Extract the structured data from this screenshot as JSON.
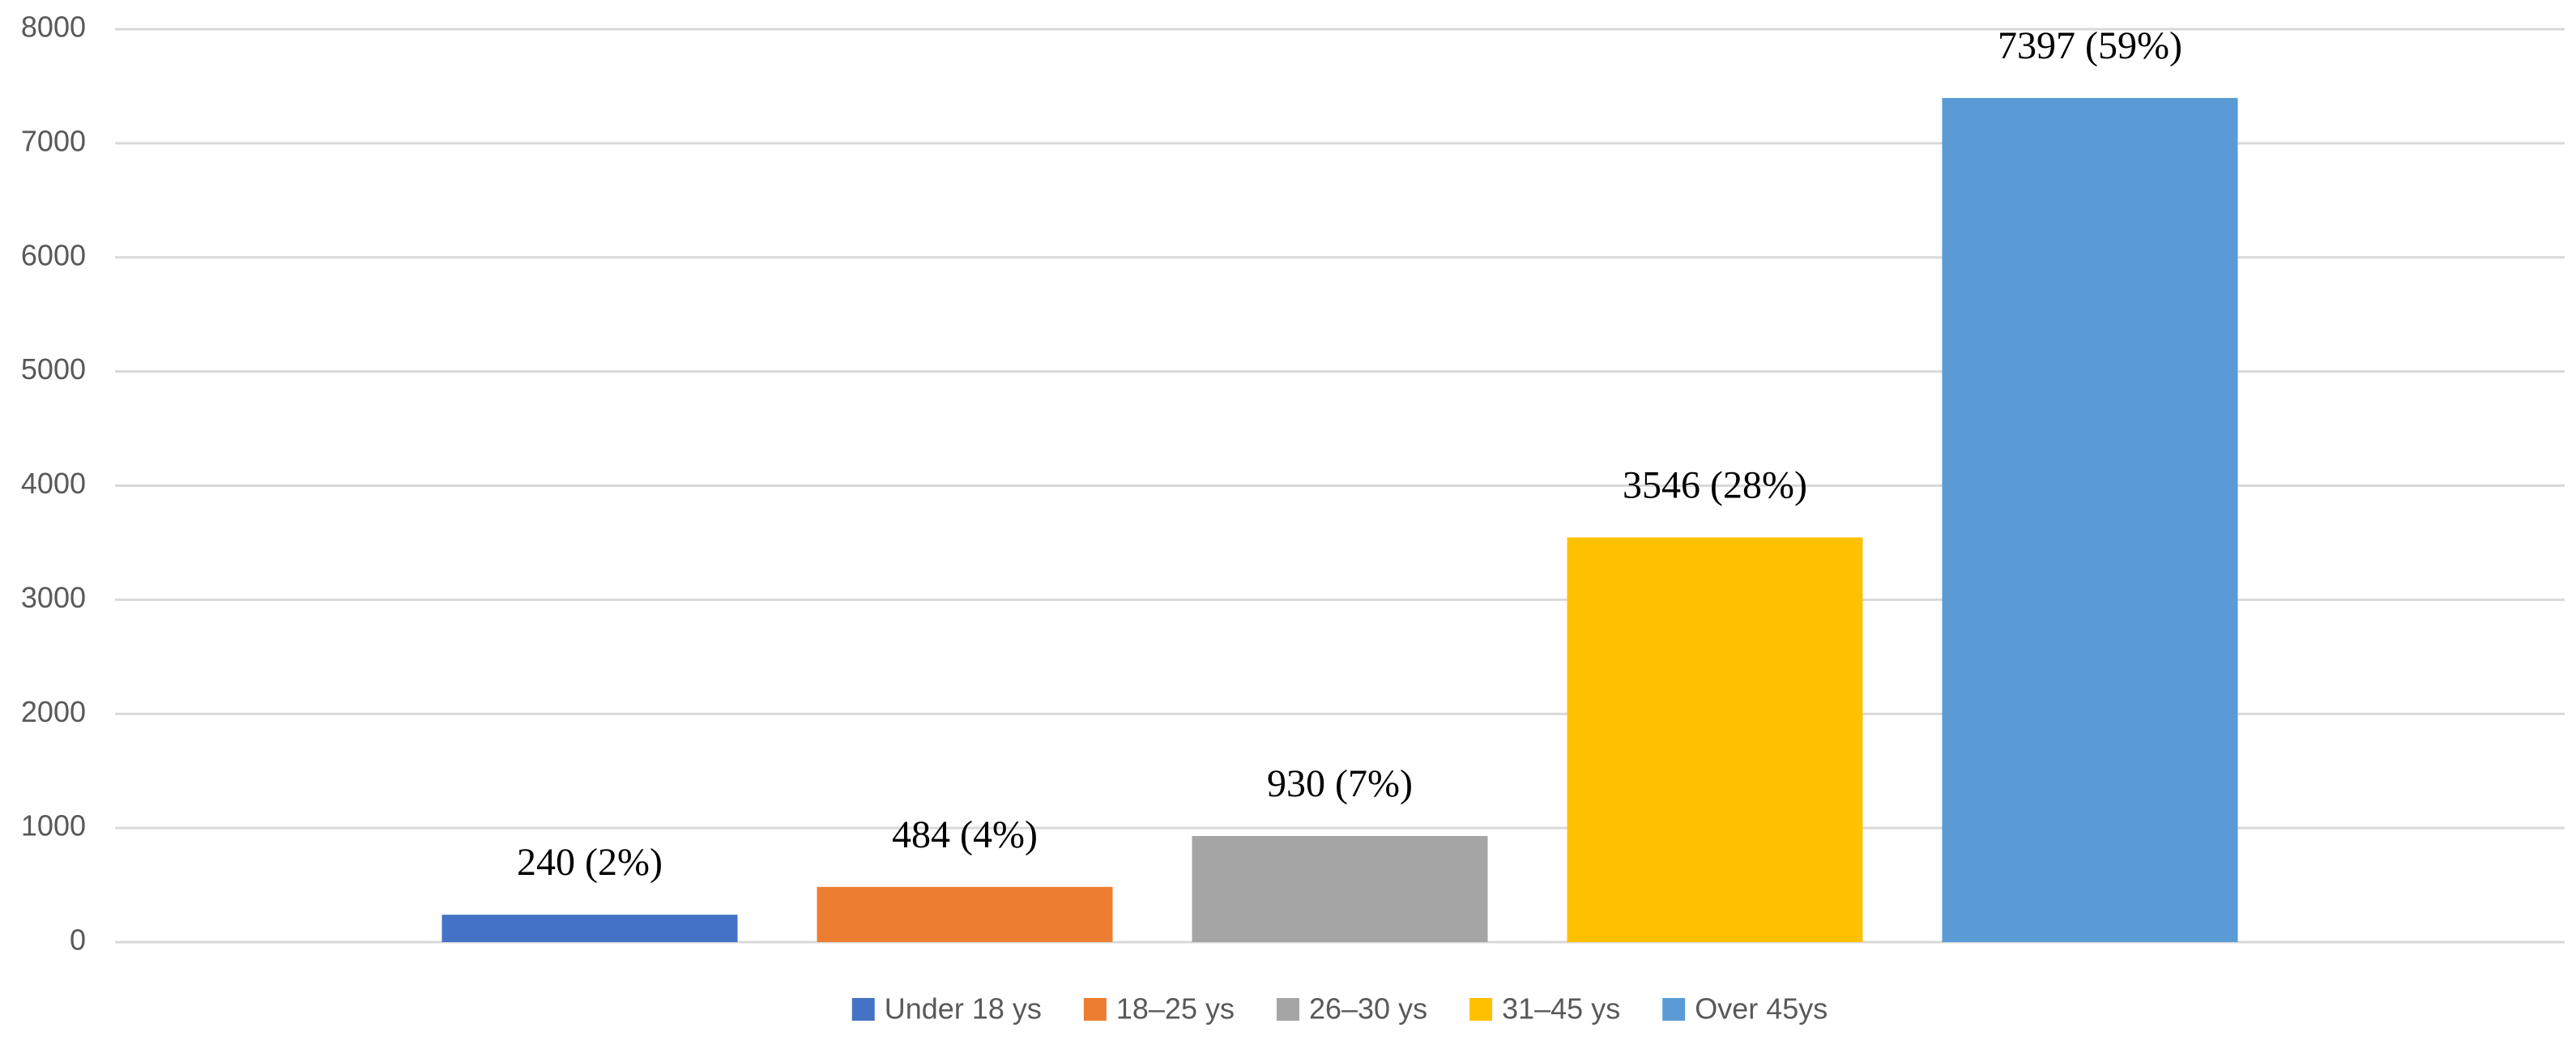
{
  "chart_data": {
    "type": "bar",
    "series": [
      {
        "name": "Under 18 ys",
        "color": "#4472c4",
        "values": [
          240
        ],
        "value_labels": [
          "240 (2%)"
        ]
      },
      {
        "name": "18–25 ys",
        "color": "#ed7d31",
        "values": [
          484
        ],
        "value_labels": [
          "484 (4%)"
        ]
      },
      {
        "name": "26–30 ys",
        "color": "#a5a5a5",
        "values": [
          930
        ],
        "value_labels": [
          "930 (7%)"
        ]
      },
      {
        "name": "31–45 ys",
        "color": "#ffc000",
        "values": [
          3546
        ],
        "value_labels": [
          "3546 (28%)"
        ]
      },
      {
        "name": "Over 45ys",
        "color": "#5b9bd5",
        "values": [
          7397
        ],
        "value_labels": [
          "7397 (59%)"
        ]
      }
    ],
    "ylim": [
      0,
      8000
    ],
    "yticks": [
      0,
      1000,
      2000,
      3000,
      4000,
      5000,
      6000,
      7000,
      8000
    ],
    "grid": true,
    "legend": "bottom"
  }
}
